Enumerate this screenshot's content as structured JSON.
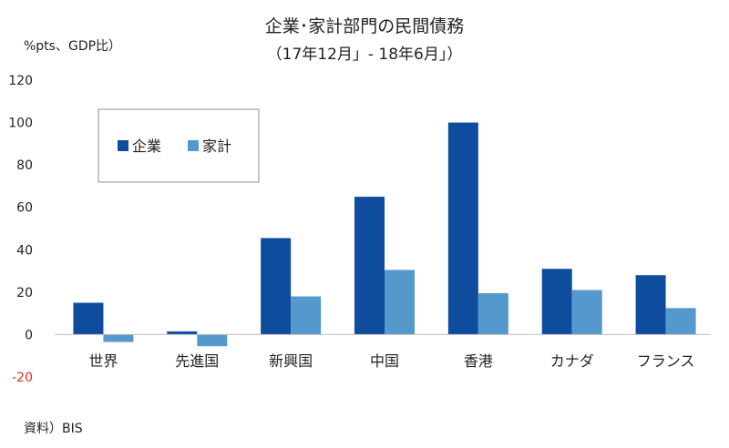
{
  "chart_data": {
    "type": "bar",
    "title": "企業･家計部門の民間債務",
    "subtitle": "（17年12月」- 18年6月」）",
    "ylabel": "%pts、GDP比）",
    "source": "資料）BIS",
    "categories": [
      "世界",
      "先進国",
      "新興国",
      "中国",
      "香港",
      "カナダ",
      "フランス"
    ],
    "series": [
      {
        "name": "企業",
        "color": "#0e4c9e",
        "values": [
          15,
          1.5,
          45.5,
          65,
          100,
          31,
          28
        ]
      },
      {
        "name": "家計",
        "color": "#5599cc",
        "values": [
          -3.5,
          -5.5,
          18,
          30.5,
          19.5,
          21,
          12.5
        ]
      }
    ],
    "ylim": [
      -20,
      120
    ],
    "yticks": [
      -20,
      0,
      20,
      40,
      60,
      80,
      100,
      120
    ],
    "legend": "top-left",
    "grid": false
  }
}
